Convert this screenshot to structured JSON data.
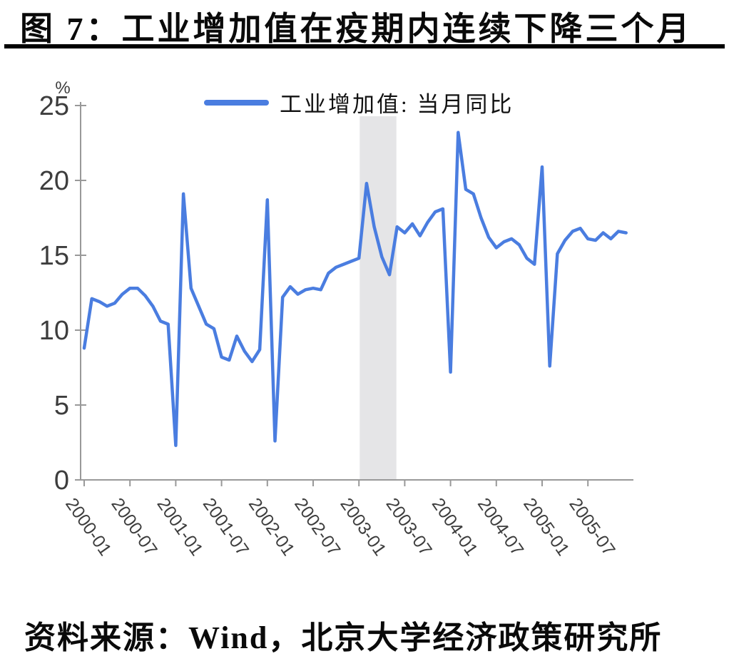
{
  "figure": {
    "title": "图 7：工业增加值在疫期内连续下降三个月",
    "source": "资料来源：Wind，北京大学经济政策研究所"
  },
  "chart_data": {
    "type": "line",
    "legend": [
      "工业增加值: 当月同比"
    ],
    "legend_position": "top-center",
    "unit_label": "%",
    "ylim": [
      0,
      25
    ],
    "yticks": [
      0,
      5,
      10,
      15,
      20,
      25
    ],
    "xtick_labels": [
      "2000-01",
      "2000-07",
      "2001-01",
      "2001-07",
      "2002-01",
      "2002-07",
      "2003-01",
      "2003-07",
      "2004-01",
      "2004-07",
      "2005-01",
      "2005-07"
    ],
    "xtick_month_index": [
      0,
      6,
      12,
      18,
      24,
      30,
      36,
      42,
      48,
      54,
      60,
      66
    ],
    "x_start": "2000-01",
    "x_freq": "monthly",
    "grid": false,
    "series": [
      {
        "name": "工业增加值: 当月同比",
        "values": [
          8.8,
          12.1,
          11.9,
          11.6,
          11.8,
          12.4,
          12.8,
          12.8,
          12.3,
          11.6,
          10.6,
          10.4,
          2.3,
          19.1,
          12.8,
          11.6,
          10.4,
          10.1,
          8.2,
          8.0,
          9.6,
          8.6,
          7.9,
          8.7,
          18.7,
          2.6,
          12.2,
          12.9,
          12.4,
          12.7,
          12.8,
          12.7,
          13.8,
          14.2,
          14.4,
          14.6,
          14.8,
          19.8,
          16.9,
          14.9,
          13.7,
          16.9,
          16.5,
          17.1,
          16.3,
          17.2,
          17.9,
          18.1,
          7.2,
          23.2,
          19.4,
          19.1,
          17.5,
          16.2,
          15.5,
          15.9,
          16.1,
          15.7,
          14.8,
          14.4,
          20.9,
          7.6,
          15.1,
          16.0,
          16.6,
          16.8,
          16.1,
          16.0,
          16.5,
          16.1,
          16.6,
          16.5
        ]
      }
    ],
    "shaded_band": {
      "from_month_index": 36.1,
      "to_month_index": 40.9
    },
    "colors": {
      "line": "#4a7de0",
      "band": "#e5e5e7",
      "axis": "#999999",
      "tick_label": "#3d3d3d",
      "text": "#111111"
    }
  }
}
